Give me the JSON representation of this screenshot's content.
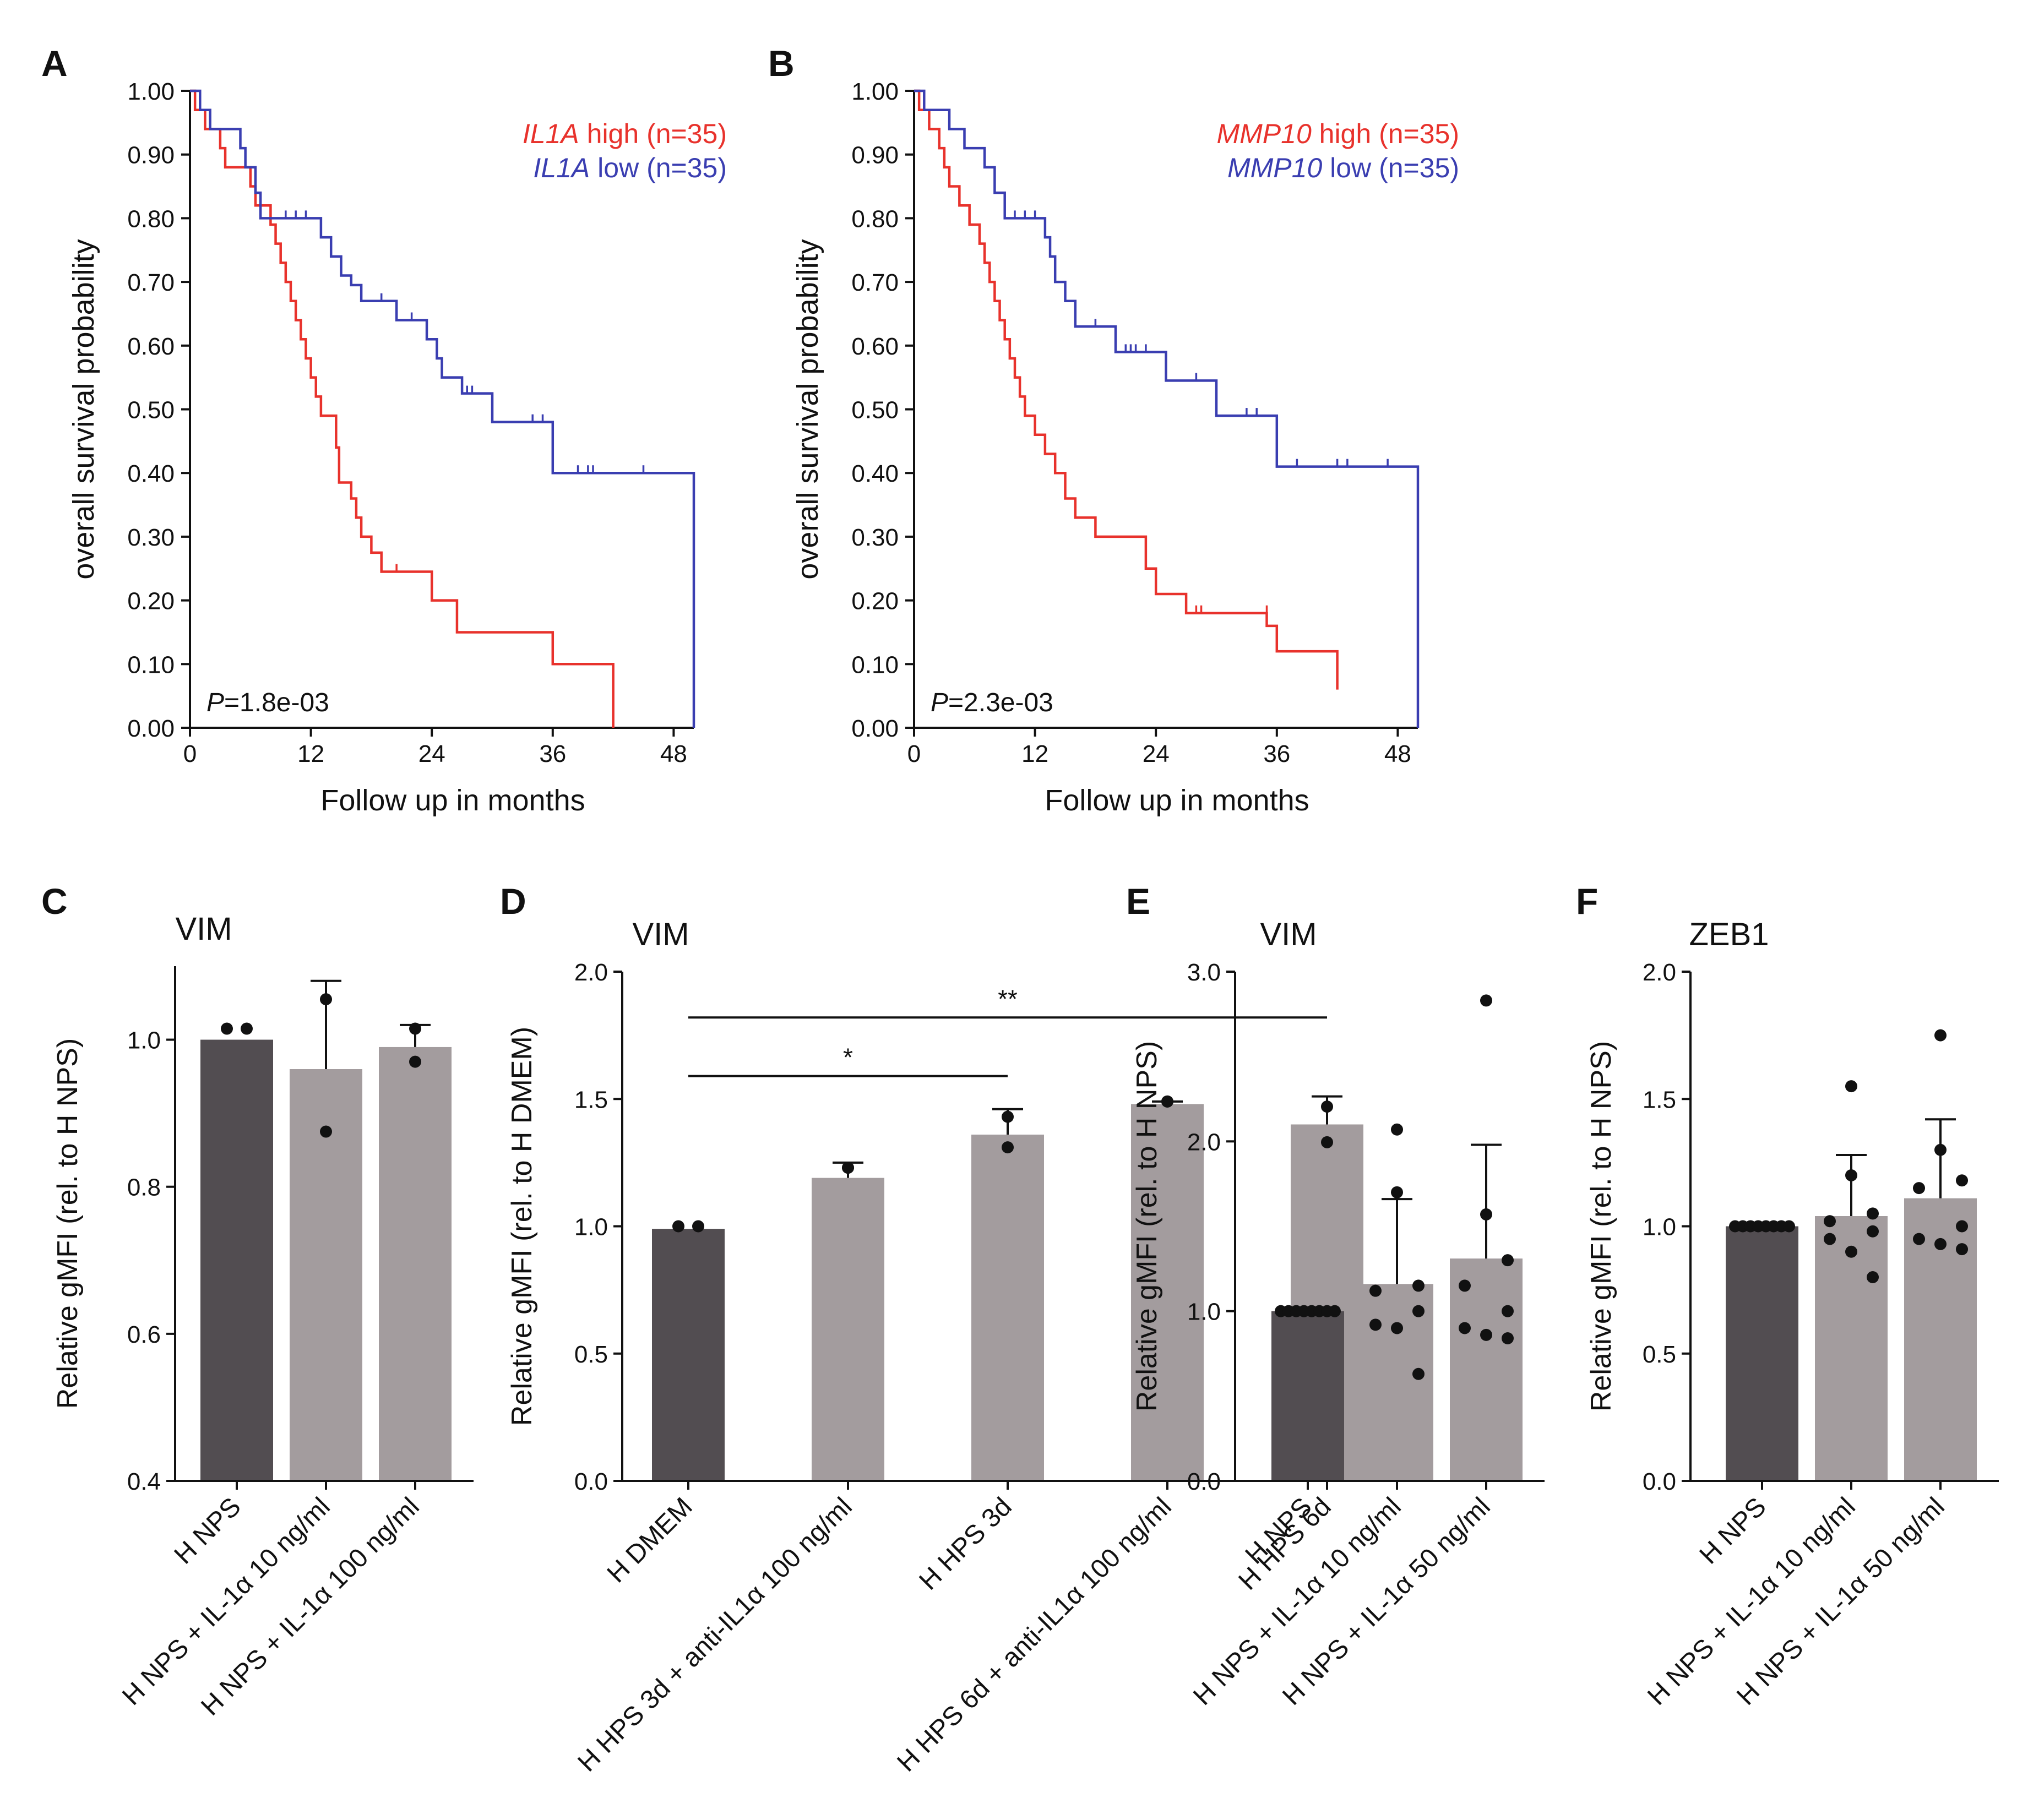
{
  "figure": {
    "colors": {
      "high": "#e8322c",
      "low": "#3a3eb1",
      "dark_bar": "#524d51",
      "light_bar": "#a39c9e",
      "ink": "#111111"
    }
  },
  "chart_data": [
    {
      "panel": "A",
      "type": "line",
      "title": "",
      "xlabel": "Follow up in months",
      "ylabel": "overall survival probability",
      "xlim": [
        0,
        50
      ],
      "ylim": [
        0,
        1
      ],
      "xticks": [
        0,
        12,
        24,
        36,
        48
      ],
      "yticks": [
        0,
        0.1,
        0.2,
        0.3,
        0.4,
        0.5,
        0.6,
        0.7,
        0.8,
        0.9,
        1.0
      ],
      "ytick_labels": [
        "0.00",
        "0.10",
        "0.20",
        "0.30",
        "0.40",
        "0.50",
        "0.60",
        "0.70",
        "0.80",
        "0.90",
        "1.00"
      ],
      "legend": [
        {
          "gene": "IL1A",
          "text": " high (n=35)",
          "color_key": "high"
        },
        {
          "gene": "IL1A",
          "text": " low (n=35)",
          "color_key": "low"
        }
      ],
      "pvalue": {
        "italic": "P",
        "text": "=1.8e-03"
      },
      "series": [
        {
          "name": "IL1A high (n=35)",
          "color_key": "high",
          "steps": [
            [
              0,
              1.0
            ],
            [
              0.5,
              0.97
            ],
            [
              1.5,
              0.94
            ],
            [
              3,
              0.91
            ],
            [
              3.5,
              0.88
            ],
            [
              6,
              0.85
            ],
            [
              6.5,
              0.82
            ],
            [
              8,
              0.79
            ],
            [
              8.5,
              0.76
            ],
            [
              9,
              0.73
            ],
            [
              9.5,
              0.7
            ],
            [
              10,
              0.67
            ],
            [
              10.5,
              0.64
            ],
            [
              11,
              0.61
            ],
            [
              11.5,
              0.58
            ],
            [
              12,
              0.55
            ],
            [
              12.5,
              0.52
            ],
            [
              13,
              0.49
            ],
            [
              14.5,
              0.44
            ],
            [
              14.8,
              0.385
            ],
            [
              16,
              0.36
            ],
            [
              16.5,
              0.33
            ],
            [
              17,
              0.3
            ],
            [
              18,
              0.275
            ],
            [
              19,
              0.245
            ],
            [
              24,
              0.2
            ],
            [
              26.5,
              0.15
            ],
            [
              36,
              0.1
            ],
            [
              42,
              0.0
            ]
          ],
          "end": 42,
          "censors": [
            [
              20.5,
              0.245
            ]
          ]
        },
        {
          "name": "IL1A low (n=35)",
          "color_key": "low",
          "steps": [
            [
              0,
              1.0
            ],
            [
              1,
              0.97
            ],
            [
              2,
              0.94
            ],
            [
              5,
              0.91
            ],
            [
              5.5,
              0.88
            ],
            [
              6.5,
              0.84
            ],
            [
              7,
              0.8
            ],
            [
              13,
              0.77
            ],
            [
              14,
              0.74
            ],
            [
              15,
              0.71
            ],
            [
              16,
              0.695
            ],
            [
              17,
              0.67
            ],
            [
              20.5,
              0.64
            ],
            [
              23.5,
              0.61
            ],
            [
              24.5,
              0.58
            ],
            [
              25,
              0.55
            ],
            [
              27,
              0.525
            ],
            [
              30,
              0.48
            ],
            [
              36,
              0.4
            ],
            [
              50,
              0.0
            ]
          ],
          "end": 50,
          "censors": [
            [
              9.5,
              0.8
            ],
            [
              10.5,
              0.8
            ],
            [
              11.5,
              0.8
            ],
            [
              19,
              0.67
            ],
            [
              22,
              0.64
            ],
            [
              27.5,
              0.525
            ],
            [
              28,
              0.525
            ],
            [
              34,
              0.48
            ],
            [
              35,
              0.48
            ],
            [
              38.5,
              0.4
            ],
            [
              39.5,
              0.4
            ],
            [
              40,
              0.4
            ],
            [
              45,
              0.4
            ]
          ]
        }
      ]
    },
    {
      "panel": "B",
      "type": "line",
      "title": "",
      "xlabel": "Follow up in months",
      "ylabel": "overall survival probability",
      "xlim": [
        0,
        50
      ],
      "ylim": [
        0,
        1
      ],
      "xticks": [
        0,
        12,
        24,
        36,
        48
      ],
      "yticks": [
        0,
        0.1,
        0.2,
        0.3,
        0.4,
        0.5,
        0.6,
        0.7,
        0.8,
        0.9,
        1.0
      ],
      "ytick_labels": [
        "0.00",
        "0.10",
        "0.20",
        "0.30",
        "0.40",
        "0.50",
        "0.60",
        "0.70",
        "0.80",
        "0.90",
        "1.00"
      ],
      "legend": [
        {
          "gene": "MMP10",
          "text": " high (n=35)",
          "color_key": "high"
        },
        {
          "gene": "MMP10",
          "text": " low (n=35)",
          "color_key": "low"
        }
      ],
      "pvalue": {
        "italic": "P",
        "text": "=2.3e-03"
      },
      "series": [
        {
          "name": "MMP10 high (n=35)",
          "color_key": "high",
          "steps": [
            [
              0,
              1.0
            ],
            [
              0.5,
              0.97
            ],
            [
              1.5,
              0.94
            ],
            [
              2.5,
              0.91
            ],
            [
              3,
              0.88
            ],
            [
              3.5,
              0.85
            ],
            [
              4.5,
              0.82
            ],
            [
              5.5,
              0.79
            ],
            [
              6.5,
              0.76
            ],
            [
              7,
              0.73
            ],
            [
              7.5,
              0.7
            ],
            [
              8,
              0.67
            ],
            [
              8.5,
              0.64
            ],
            [
              9,
              0.61
            ],
            [
              9.5,
              0.58
            ],
            [
              10,
              0.55
            ],
            [
              10.5,
              0.52
            ],
            [
              11,
              0.49
            ],
            [
              12,
              0.46
            ],
            [
              13,
              0.43
            ],
            [
              14,
              0.4
            ],
            [
              15,
              0.36
            ],
            [
              16,
              0.33
            ],
            [
              18,
              0.3
            ],
            [
              23,
              0.25
            ],
            [
              24,
              0.21
            ],
            [
              27,
              0.18
            ],
            [
              35,
              0.16
            ],
            [
              36,
              0.12
            ],
            [
              42,
              0.06
            ]
          ],
          "end": 42,
          "censors": [
            [
              28,
              0.18
            ],
            [
              28.5,
              0.18
            ],
            [
              35,
              0.18
            ]
          ]
        },
        {
          "name": "MMP10 low (n=35)",
          "color_key": "low",
          "steps": [
            [
              0,
              1.0
            ],
            [
              1,
              0.97
            ],
            [
              3.5,
              0.94
            ],
            [
              5,
              0.91
            ],
            [
              7,
              0.88
            ],
            [
              8,
              0.84
            ],
            [
              9,
              0.8
            ],
            [
              13,
              0.77
            ],
            [
              13.5,
              0.74
            ],
            [
              14,
              0.7
            ],
            [
              15,
              0.67
            ],
            [
              16,
              0.63
            ],
            [
              20,
              0.59
            ],
            [
              25,
              0.545
            ],
            [
              30,
              0.49
            ],
            [
              36,
              0.41
            ],
            [
              50,
              0.0
            ]
          ],
          "end": 50,
          "censors": [
            [
              10,
              0.8
            ],
            [
              11,
              0.8
            ],
            [
              12,
              0.8
            ],
            [
              18,
              0.63
            ],
            [
              21,
              0.59
            ],
            [
              21.5,
              0.59
            ],
            [
              22,
              0.59
            ],
            [
              23,
              0.59
            ],
            [
              28,
              0.545
            ],
            [
              33,
              0.49
            ],
            [
              34,
              0.49
            ],
            [
              38,
              0.41
            ],
            [
              42,
              0.41
            ],
            [
              43,
              0.41
            ],
            [
              47,
              0.41
            ]
          ]
        }
      ]
    },
    {
      "panel": "C",
      "type": "bar",
      "title": "VIM",
      "ylabel": "Relative gMFI (rel. to H NPS)",
      "ylim": [
        0.4,
        1.1
      ],
      "yticks": [
        0.4,
        0.6,
        0.8,
        1.0
      ],
      "ytick_labels": [
        "0.4",
        "0.6",
        "0.8",
        "1.0"
      ],
      "categories": [
        "H NPS",
        "H NPS + IL-1α 10 ng/ml",
        "H NPS + IL-1α 100 ng/ml"
      ],
      "values": [
        1.0,
        0.96,
        0.99
      ],
      "errors": [
        0,
        0.12,
        0.03
      ],
      "bar_color_keys": [
        "dark_bar",
        "light_bar",
        "light_bar"
      ],
      "points": [
        [
          1.015,
          1.015
        ],
        [
          0.875,
          1.055
        ],
        [
          0.97,
          1.015
        ]
      ],
      "significance": []
    },
    {
      "panel": "D",
      "type": "bar",
      "title": "VIM",
      "ylabel": "Relative gMFI (rel. to H DMEM)",
      "ylim": [
        0,
        2.0
      ],
      "yticks": [
        0,
        0.5,
        1.0,
        1.5,
        2.0
      ],
      "ytick_labels": [
        "0.0",
        "0.5",
        "1.0",
        "1.5",
        "2.0"
      ],
      "categories": [
        "H DMEM",
        "H HPS 3d + anti-IL1α 100 ng/ml",
        "H HPS 3d",
        "H HPS 6d + anti-IL1α 100 ng/ml",
        "H HPS 6d"
      ],
      "values": [
        0.99,
        1.19,
        1.36,
        1.48,
        1.4
      ],
      "errors": [
        0,
        0.06,
        0.1,
        0.01,
        0.11
      ],
      "bar_color_keys": [
        "dark_bar",
        "light_bar",
        "light_bar",
        "light_bar",
        "light_bar"
      ],
      "points": [
        [
          1.0,
          1.0
        ],
        [
          1.23,
          1.23
        ],
        [
          1.31,
          1.43
        ],
        [
          1.49,
          1.49
        ],
        [
          1.33,
          1.47
        ]
      ],
      "significance": [
        {
          "from": 0,
          "to": 2,
          "y": 1.59,
          "label": "*"
        },
        {
          "from": 0,
          "to": 4,
          "y": 1.82,
          "label": "**"
        }
      ]
    },
    {
      "panel": "E",
      "type": "bar",
      "title": "VIM",
      "ylabel": "Relative gMFI (rel. to H NPS)",
      "ylim": [
        0,
        3.0
      ],
      "yticks": [
        0,
        1.0,
        2.0,
        3.0
      ],
      "ytick_labels": [
        "0.0",
        "1.0",
        "2.0",
        "3.0"
      ],
      "categories": [
        "H NPS",
        "H NPS + IL-1α 10 ng/ml",
        "H NPS + IL-1α 50 ng/ml"
      ],
      "values": [
        1.0,
        1.16,
        1.31
      ],
      "errors": [
        0,
        0.5,
        0.67
      ],
      "bar_color_keys": [
        "dark_bar",
        "light_bar",
        "light_bar"
      ],
      "points": [
        [
          1,
          1,
          1,
          1,
          1,
          1,
          1,
          1
        ],
        [
          2.07,
          1.7,
          1.15,
          1.12,
          1.0,
          0.92,
          0.9,
          0.63
        ],
        [
          2.83,
          1.57,
          1.3,
          1.15,
          1.0,
          0.9,
          0.86,
          0.84
        ]
      ],
      "significance": []
    },
    {
      "panel": "F",
      "type": "bar",
      "title": "ZEB1",
      "ylabel": "Relative gMFI (rel. to H NPS)",
      "ylim": [
        0,
        2.0
      ],
      "yticks": [
        0,
        0.5,
        1.0,
        1.5,
        2.0
      ],
      "ytick_labels": [
        "0.0",
        "0.5",
        "1.0",
        "1.5",
        "2.0"
      ],
      "categories": [
        "H NPS",
        "H NPS + IL-1α 10 ng/ml",
        "H NPS + IL-1α 50 ng/ml"
      ],
      "values": [
        1.0,
        1.04,
        1.11
      ],
      "errors": [
        0,
        0.24,
        0.31
      ],
      "bar_color_keys": [
        "dark_bar",
        "light_bar",
        "light_bar"
      ],
      "points": [
        [
          1,
          1,
          1,
          1,
          1,
          1,
          1,
          1
        ],
        [
          1.55,
          1.2,
          1.05,
          1.02,
          0.98,
          0.95,
          0.9,
          0.8
        ],
        [
          1.75,
          1.3,
          1.18,
          1.15,
          1.0,
          0.95,
          0.93,
          0.91
        ]
      ],
      "significance": []
    }
  ]
}
